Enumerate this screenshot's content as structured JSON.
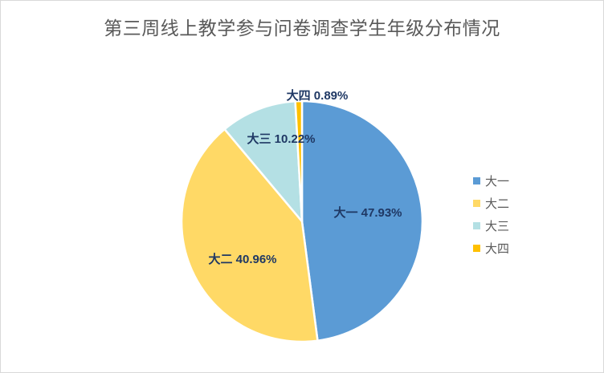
{
  "chart_data": {
    "type": "pie",
    "title": "第三周线上教学参与问卷调查学生年级分布情况",
    "categories": [
      "大一",
      "大二",
      "大三",
      "大四"
    ],
    "values": [
      47.93,
      40.96,
      10.22,
      0.89
    ],
    "unit": "%",
    "data_labels": [
      "大一  47.93%",
      "大二 40.96%",
      "大三  10.22%",
      "大四  0.89%"
    ],
    "colors": [
      "#5B9BD5",
      "#FFD966",
      "#B4E0E4",
      "#FFC000"
    ],
    "label_color": "#1F3864",
    "legend": {
      "placement": "right",
      "entries": [
        "大一",
        "大二",
        "大三",
        "大四"
      ]
    }
  }
}
